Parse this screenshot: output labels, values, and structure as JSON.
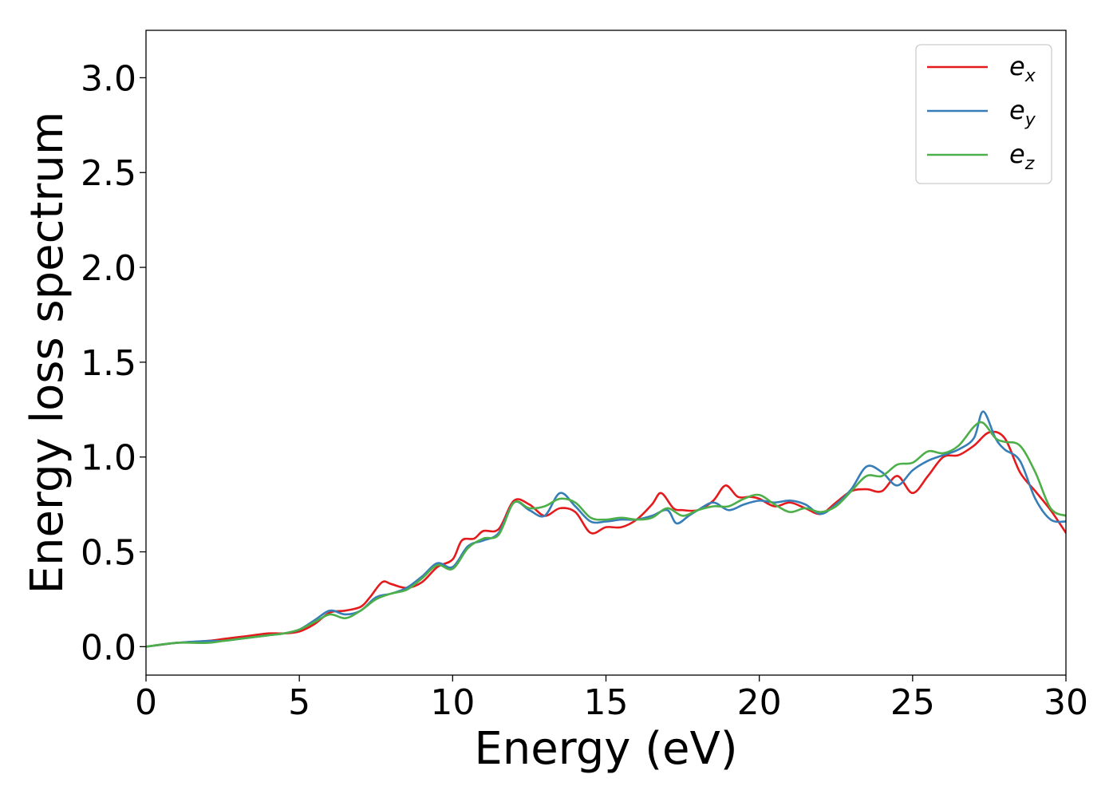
{
  "chart_data": {
    "type": "line",
    "title": "",
    "xlabel": "Energy (eV)",
    "ylabel": "Energy loss spectrum",
    "xlim": [
      0,
      30
    ],
    "ylim": [
      -0.15,
      3.25
    ],
    "xticks": [
      0,
      5,
      10,
      15,
      20,
      25,
      30
    ],
    "xtick_labels": [
      "0",
      "5",
      "10",
      "15",
      "20",
      "25",
      "30"
    ],
    "yticks": [
      0.0,
      0.5,
      1.0,
      1.5,
      2.0,
      2.5,
      3.0
    ],
    "ytick_labels": [
      "0.0",
      "0.5",
      "1.0",
      "1.5",
      "2.0",
      "2.5",
      "3.0"
    ],
    "grid": false,
    "legend_position": "top-right",
    "series": [
      {
        "name": "e_x",
        "label_base": "e",
        "label_sub": "x",
        "color": "#e41a1c",
        "x": [
          0,
          1,
          2,
          2.5,
          3,
          3.5,
          4,
          4.5,
          5,
          5.5,
          6,
          6.5,
          7,
          7.3,
          7.7,
          8,
          8.5,
          9,
          9.5,
          10,
          10.3,
          10.7,
          11,
          11.5,
          12,
          12.5,
          13,
          13.5,
          14,
          14.5,
          15,
          15.5,
          16,
          16.5,
          16.8,
          17.2,
          17.5,
          18,
          18.5,
          18.9,
          19.3,
          19.7,
          20,
          20.5,
          21,
          21.5,
          22,
          22.5,
          23,
          23.5,
          24,
          24.5,
          25,
          25.5,
          26,
          26.5,
          27,
          27.5,
          28,
          28.5,
          29,
          29.5,
          30
        ],
        "y": [
          0.0,
          0.02,
          0.03,
          0.04,
          0.05,
          0.06,
          0.07,
          0.07,
          0.08,
          0.12,
          0.18,
          0.19,
          0.21,
          0.26,
          0.34,
          0.33,
          0.31,
          0.34,
          0.42,
          0.46,
          0.56,
          0.57,
          0.61,
          0.62,
          0.77,
          0.75,
          0.69,
          0.73,
          0.71,
          0.6,
          0.63,
          0.63,
          0.67,
          0.75,
          0.81,
          0.73,
          0.72,
          0.72,
          0.77,
          0.85,
          0.79,
          0.79,
          0.78,
          0.74,
          0.76,
          0.73,
          0.7,
          0.76,
          0.82,
          0.83,
          0.82,
          0.9,
          0.81,
          0.9,
          1.0,
          1.01,
          1.06,
          1.13,
          1.1,
          0.92,
          0.82,
          0.72,
          0.6
        ]
      },
      {
        "name": "e_y",
        "label_base": "e",
        "label_sub": "y",
        "color": "#377eb8",
        "x": [
          0,
          1,
          2,
          2.5,
          3,
          3.5,
          4,
          4.5,
          5,
          5.5,
          6,
          6.5,
          7,
          7.5,
          8,
          8.5,
          9,
          9.5,
          10,
          10.5,
          11,
          11.5,
          12,
          12.5,
          13,
          13.5,
          14,
          14.5,
          15,
          15.5,
          16,
          16.5,
          17,
          17.3,
          17.7,
          18,
          18.5,
          19,
          19.5,
          20,
          20.5,
          21,
          21.5,
          22,
          22.5,
          23,
          23.5,
          24,
          24.5,
          25,
          25.5,
          26,
          26.5,
          27,
          27.3,
          27.7,
          28,
          28.5,
          29,
          29.5,
          30
        ],
        "y": [
          0.0,
          0.02,
          0.03,
          0.03,
          0.04,
          0.05,
          0.06,
          0.07,
          0.09,
          0.14,
          0.19,
          0.17,
          0.19,
          0.26,
          0.28,
          0.31,
          0.37,
          0.44,
          0.42,
          0.53,
          0.56,
          0.6,
          0.76,
          0.72,
          0.69,
          0.81,
          0.74,
          0.66,
          0.66,
          0.67,
          0.67,
          0.69,
          0.72,
          0.65,
          0.69,
          0.72,
          0.76,
          0.72,
          0.75,
          0.77,
          0.76,
          0.77,
          0.75,
          0.7,
          0.75,
          0.83,
          0.95,
          0.92,
          0.85,
          0.93,
          0.98,
          1.01,
          1.04,
          1.1,
          1.24,
          1.1,
          1.04,
          0.98,
          0.78,
          0.67,
          0.66
        ]
      },
      {
        "name": "e_z",
        "label_base": "e",
        "label_sub": "z",
        "color": "#4daf4a",
        "x": [
          0,
          1,
          2,
          2.5,
          3,
          3.5,
          4,
          4.5,
          5,
          5.5,
          6,
          6.5,
          7,
          7.5,
          8,
          8.5,
          9,
          9.5,
          10,
          10.5,
          11,
          11.5,
          12,
          12.5,
          13,
          13.5,
          14,
          14.5,
          15,
          15.5,
          16,
          16.5,
          17,
          17.5,
          18,
          18.5,
          19,
          19.5,
          20,
          20.5,
          21,
          21.5,
          22,
          22.5,
          23,
          23.5,
          24,
          24.5,
          25,
          25.5,
          26,
          26.5,
          27,
          27.3,
          27.7,
          28,
          28.5,
          29,
          29.5,
          30
        ],
        "y": [
          0.0,
          0.02,
          0.02,
          0.03,
          0.04,
          0.05,
          0.06,
          0.07,
          0.09,
          0.13,
          0.17,
          0.15,
          0.19,
          0.25,
          0.28,
          0.3,
          0.36,
          0.43,
          0.41,
          0.52,
          0.57,
          0.59,
          0.76,
          0.73,
          0.74,
          0.78,
          0.76,
          0.68,
          0.67,
          0.68,
          0.67,
          0.68,
          0.73,
          0.69,
          0.72,
          0.74,
          0.74,
          0.78,
          0.8,
          0.75,
          0.71,
          0.73,
          0.71,
          0.74,
          0.82,
          0.9,
          0.9,
          0.96,
          0.97,
          1.03,
          1.02,
          1.06,
          1.16,
          1.18,
          1.1,
          1.08,
          1.06,
          0.92,
          0.73,
          0.69
        ]
      }
    ]
  }
}
